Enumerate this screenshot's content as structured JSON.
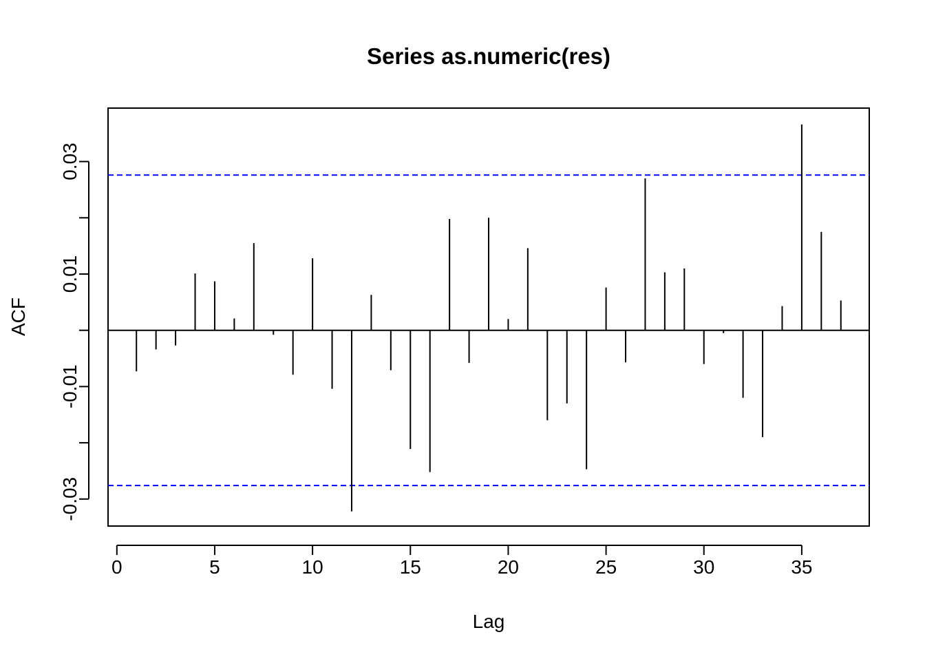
{
  "chart_data": {
    "type": "bar",
    "style": "acf-lollipop",
    "title": "Series as.numeric(res)",
    "xlabel": "Lag",
    "ylabel": "ACF",
    "xlim": [
      -0.45,
      38.45
    ],
    "ylim": [
      -0.0348,
      0.0395
    ],
    "x_ticks": [
      0,
      5,
      10,
      15,
      20,
      25,
      30,
      35
    ],
    "y_ticks": [
      -0.03,
      -0.01,
      0.01,
      0.03
    ],
    "y_tick_labels": [
      "-0.03",
      "-0.01",
      "0.01",
      "0.03"
    ],
    "confidence_bound": 0.0276,
    "grid": false,
    "colors": {
      "bars": "#000000",
      "bounds": "#0000ff",
      "zero": "#000000"
    },
    "series": [
      {
        "lags": [
          1,
          2,
          3,
          4,
          5,
          6,
          7,
          8,
          9,
          10,
          11,
          12,
          13,
          14,
          15,
          16,
          17,
          18,
          19,
          20,
          21,
          22,
          23,
          24,
          25,
          26,
          27,
          28,
          29,
          30,
          31,
          32,
          33,
          34,
          35,
          36,
          37
        ],
        "values": [
          -0.0073,
          -0.0034,
          -0.0027,
          0.0101,
          0.0087,
          0.0021,
          0.0155,
          -0.0008,
          -0.0079,
          0.0128,
          -0.0104,
          -0.0322,
          0.0063,
          -0.0071,
          -0.0211,
          -0.0252,
          0.0198,
          -0.0058,
          0.02,
          0.002,
          0.0146,
          -0.016,
          -0.013,
          -0.0247,
          0.0076,
          -0.0057,
          0.027,
          0.0103,
          0.011,
          -0.006,
          -0.0005,
          -0.012,
          -0.019,
          0.0043,
          0.0366,
          0.0175,
          0.0053
        ]
      }
    ]
  }
}
